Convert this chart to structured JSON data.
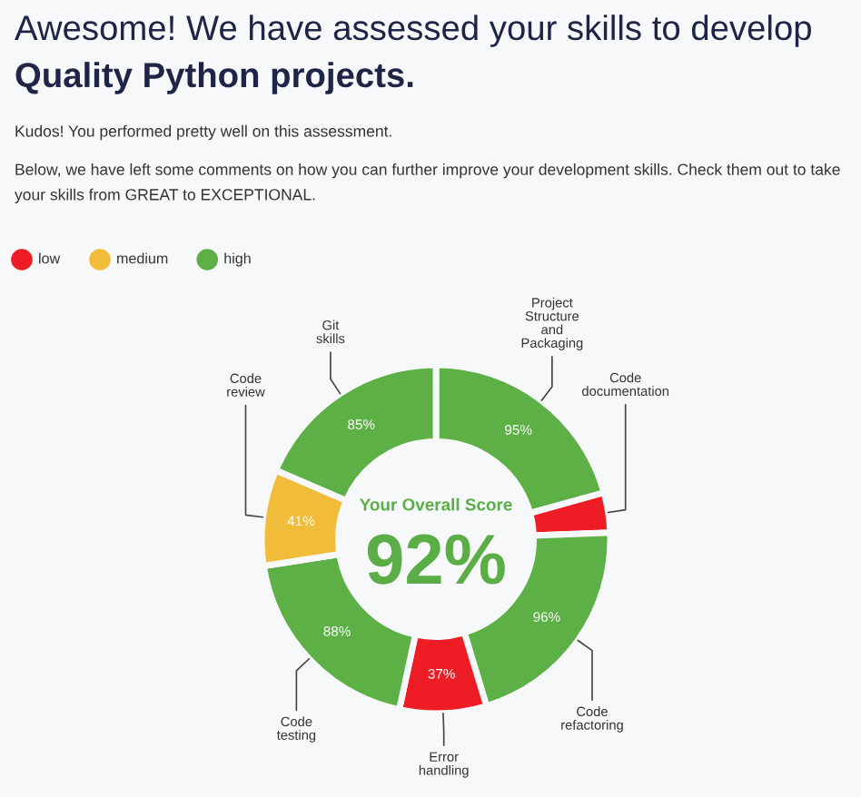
{
  "chart_data": {
    "type": "donut",
    "title": "Awesome! We have assessed your skills to develop\nQuality Python projects.",
    "subtitle": "Kudos! You performed pretty well on this assessment.",
    "annotations": [
      "Below, we have left some comments on how you can further improve your development skills. Check them out to take your skills from GREAT to EXCEPTIONAL.",
      "Your Overall Score",
      "92%",
      "low",
      "medium",
      "high"
    ],
    "categories": [
      "Project\nStructure\nand\nPackaging",
      "Code\ndocumentation",
      "Code\nrefactoring",
      "Error\nhandling",
      "Code\ntesting",
      "Code\nreview",
      "Git\nskills"
    ],
    "values": [
      95,
      17,
      96,
      37,
      88,
      41,
      85
    ],
    "colors": [
      "#5cb046",
      "#ee1d25",
      "#5cb046",
      "#ee1d25",
      "#5cb046",
      "#f1bc3a",
      "#5cb046"
    ],
    "value_labels": [
      "95%",
      null,
      "96%",
      "37%",
      "88%",
      "41%",
      "85%"
    ]
  }
}
